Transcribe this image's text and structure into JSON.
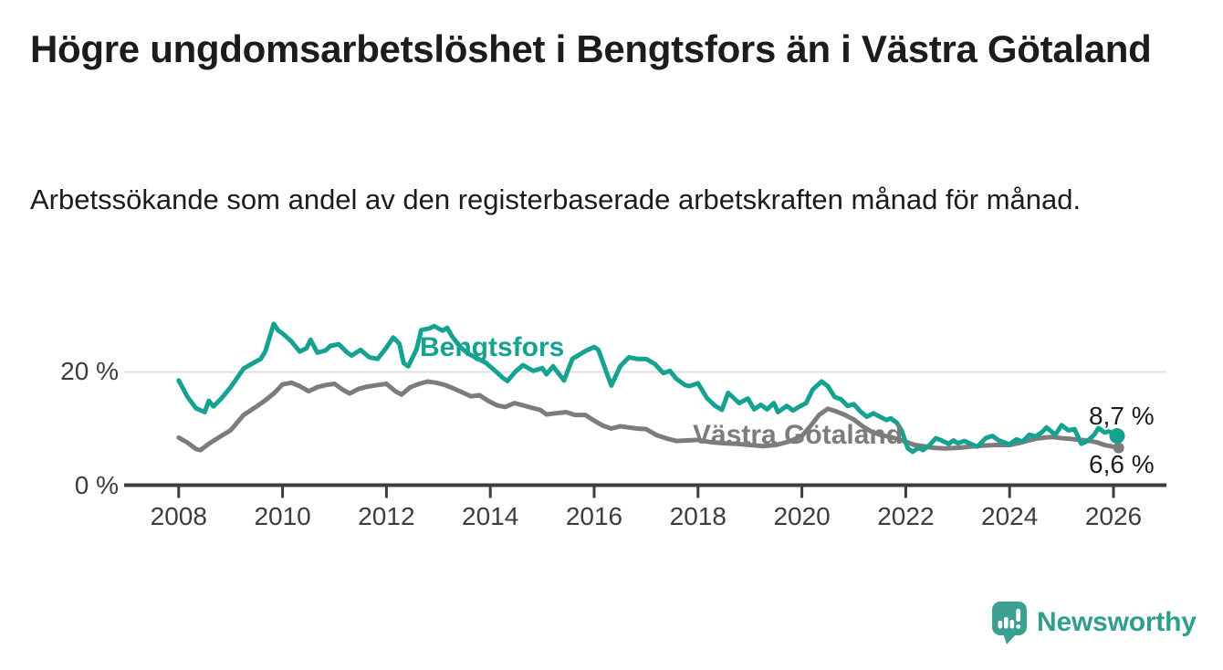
{
  "header": {
    "title": "Högre ungdomsarbetslöshet i Bengtsfors än i Västra Götaland",
    "subtitle": "Arbetssökande som andel av den registerbaserade arbetskraften månad för månad."
  },
  "footer": {
    "brand": {
      "name": "Newsworthy",
      "icon": "newsworthy-speech-bubble-bar-chart-icon",
      "icon_color": "#3ba092",
      "text_color": "#2f9e8f"
    }
  },
  "chart_data": {
    "type": "line",
    "title": "Högre ungdomsarbetslöshet i Bengtsfors än i Västra Götaland",
    "subtitle": "Arbetssökande som andel av den registerbaserade arbetskraften månad för månad.",
    "unit": "%",
    "legend_position": "inline-labels-on-lines",
    "grid": {
      "horizontal_gridlines_at": [
        20
      ],
      "gridline_color": "#e0e0e0"
    },
    "axis_color": "#3d3d3d",
    "x_axis": {
      "range": [
        2006.95,
        2027.05
      ],
      "ticks": [
        {
          "value": 2008,
          "label": "2008"
        },
        {
          "value": 2010,
          "label": "2010"
        },
        {
          "value": 2012,
          "label": "2012"
        },
        {
          "value": 2014,
          "label": "2014"
        },
        {
          "value": 2016,
          "label": "2016"
        },
        {
          "value": 2018,
          "label": "2018"
        },
        {
          "value": 2020,
          "label": "2020"
        },
        {
          "value": 2022,
          "label": "2022"
        },
        {
          "value": 2024,
          "label": "2024"
        },
        {
          "value": 2026,
          "label": "2026"
        }
      ]
    },
    "y_axis": {
      "range": [
        0,
        32
      ],
      "ticks": [
        {
          "value": 0,
          "label": "0 %"
        },
        {
          "value": 20,
          "label": "20 %"
        }
      ]
    },
    "series": [
      {
        "name": "Bengtsfors",
        "color": "#16a291",
        "end_label": "8,7 %",
        "end_value": 8.7,
        "end_dot_radius": 8.5,
        "points": [
          [
            2008.0,
            18.5
          ],
          [
            2008.17,
            15.6
          ],
          [
            2008.33,
            13.6
          ],
          [
            2008.5,
            12.9
          ],
          [
            2008.58,
            14.9
          ],
          [
            2008.67,
            13.9
          ],
          [
            2008.83,
            15.4
          ],
          [
            2009.0,
            17.3
          ],
          [
            2009.25,
            20.6
          ],
          [
            2009.42,
            21.5
          ],
          [
            2009.58,
            22.3
          ],
          [
            2009.67,
            23.7
          ],
          [
            2009.83,
            28.5
          ],
          [
            2009.92,
            27.3
          ],
          [
            2010.0,
            26.8
          ],
          [
            2010.17,
            25.4
          ],
          [
            2010.33,
            23.6
          ],
          [
            2010.46,
            24.2
          ],
          [
            2010.54,
            25.7
          ],
          [
            2010.67,
            23.4
          ],
          [
            2010.83,
            23.8
          ],
          [
            2010.92,
            24.6
          ],
          [
            2011.08,
            24.9
          ],
          [
            2011.25,
            23.4
          ],
          [
            2011.33,
            22.9
          ],
          [
            2011.5,
            23.9
          ],
          [
            2011.67,
            22.6
          ],
          [
            2011.83,
            22.3
          ],
          [
            2012.0,
            24.3
          ],
          [
            2012.13,
            26.1
          ],
          [
            2012.25,
            25.0
          ],
          [
            2012.33,
            21.6
          ],
          [
            2012.42,
            21.0
          ],
          [
            2012.58,
            24.0
          ],
          [
            2012.67,
            27.4
          ],
          [
            2012.83,
            27.7
          ],
          [
            2012.92,
            28.1
          ],
          [
            2013.08,
            27.3
          ],
          [
            2013.17,
            27.8
          ],
          [
            2013.25,
            26.5
          ],
          [
            2013.42,
            24.4
          ],
          [
            2013.58,
            23.2
          ],
          [
            2013.75,
            22.4
          ],
          [
            2013.92,
            21.6
          ],
          [
            2014.08,
            20.3
          ],
          [
            2014.25,
            18.9
          ],
          [
            2014.33,
            18.4
          ],
          [
            2014.5,
            20.2
          ],
          [
            2014.63,
            21.2
          ],
          [
            2014.83,
            20.2
          ],
          [
            2015.0,
            20.7
          ],
          [
            2015.08,
            19.6
          ],
          [
            2015.21,
            21.0
          ],
          [
            2015.42,
            18.5
          ],
          [
            2015.58,
            22.3
          ],
          [
            2015.83,
            23.7
          ],
          [
            2016.0,
            24.4
          ],
          [
            2016.08,
            23.9
          ],
          [
            2016.33,
            17.6
          ],
          [
            2016.5,
            21.0
          ],
          [
            2016.67,
            22.6
          ],
          [
            2016.83,
            22.3
          ],
          [
            2017.0,
            22.3
          ],
          [
            2017.17,
            21.4
          ],
          [
            2017.33,
            19.8
          ],
          [
            2017.46,
            20.2
          ],
          [
            2017.58,
            18.8
          ],
          [
            2017.75,
            17.7
          ],
          [
            2017.83,
            17.5
          ],
          [
            2018.0,
            18.0
          ],
          [
            2018.17,
            15.4
          ],
          [
            2018.33,
            14.0
          ],
          [
            2018.46,
            13.3
          ],
          [
            2018.58,
            16.3
          ],
          [
            2018.79,
            14.5
          ],
          [
            2018.96,
            15.3
          ],
          [
            2019.08,
            13.4
          ],
          [
            2019.21,
            14.2
          ],
          [
            2019.33,
            13.4
          ],
          [
            2019.46,
            14.5
          ],
          [
            2019.54,
            12.9
          ],
          [
            2019.71,
            14.0
          ],
          [
            2019.83,
            13.2
          ],
          [
            2019.92,
            13.7
          ],
          [
            2020.08,
            14.5
          ],
          [
            2020.21,
            16.9
          ],
          [
            2020.38,
            18.3
          ],
          [
            2020.5,
            17.5
          ],
          [
            2020.63,
            15.6
          ],
          [
            2020.75,
            15.2
          ],
          [
            2020.88,
            14.0
          ],
          [
            2021.0,
            14.3
          ],
          [
            2021.13,
            13.0
          ],
          [
            2021.25,
            12.1
          ],
          [
            2021.38,
            12.7
          ],
          [
            2021.5,
            12.1
          ],
          [
            2021.63,
            11.5
          ],
          [
            2021.71,
            11.8
          ],
          [
            2021.83,
            11.0
          ],
          [
            2021.92,
            9.7
          ],
          [
            2022.04,
            6.5
          ],
          [
            2022.13,
            5.9
          ],
          [
            2022.25,
            6.6
          ],
          [
            2022.33,
            6.2
          ],
          [
            2022.46,
            7.1
          ],
          [
            2022.58,
            8.3
          ],
          [
            2022.71,
            7.8
          ],
          [
            2022.83,
            7.3
          ],
          [
            2022.92,
            7.9
          ],
          [
            2023.0,
            7.4
          ],
          [
            2023.13,
            7.8
          ],
          [
            2023.25,
            7.3
          ],
          [
            2023.38,
            6.8
          ],
          [
            2023.54,
            8.3
          ],
          [
            2023.67,
            8.7
          ],
          [
            2023.79,
            7.9
          ],
          [
            2023.92,
            7.5
          ],
          [
            2024.0,
            7.2
          ],
          [
            2024.13,
            8.1
          ],
          [
            2024.25,
            7.7
          ],
          [
            2024.38,
            8.9
          ],
          [
            2024.5,
            8.6
          ],
          [
            2024.63,
            9.4
          ],
          [
            2024.71,
            10.2
          ],
          [
            2024.88,
            8.9
          ],
          [
            2025.0,
            10.6
          ],
          [
            2025.13,
            9.7
          ],
          [
            2025.25,
            9.9
          ],
          [
            2025.38,
            7.3
          ],
          [
            2025.5,
            7.8
          ],
          [
            2025.63,
            8.9
          ],
          [
            2025.71,
            10.1
          ],
          [
            2025.83,
            9.3
          ],
          [
            2025.92,
            9.5
          ],
          [
            2026.07,
            8.7
          ]
        ]
      },
      {
        "name": "Västra Götaland",
        "color": "#7c7c7c",
        "end_label": "6,6 %",
        "end_value": 6.6,
        "end_dot_radius": 6,
        "points": [
          [
            2008.0,
            8.4
          ],
          [
            2008.17,
            7.5
          ],
          [
            2008.33,
            6.4
          ],
          [
            2008.42,
            6.2
          ],
          [
            2008.58,
            7.3
          ],
          [
            2008.75,
            8.3
          ],
          [
            2009.0,
            9.7
          ],
          [
            2009.25,
            12.4
          ],
          [
            2009.5,
            13.9
          ],
          [
            2009.67,
            15.0
          ],
          [
            2009.83,
            16.2
          ],
          [
            2010.0,
            17.8
          ],
          [
            2010.17,
            18.1
          ],
          [
            2010.33,
            17.5
          ],
          [
            2010.5,
            16.6
          ],
          [
            2010.67,
            17.3
          ],
          [
            2010.83,
            17.7
          ],
          [
            2011.0,
            17.9
          ],
          [
            2011.17,
            16.8
          ],
          [
            2011.29,
            16.2
          ],
          [
            2011.46,
            17.0
          ],
          [
            2011.63,
            17.4
          ],
          [
            2011.83,
            17.7
          ],
          [
            2012.0,
            17.9
          ],
          [
            2012.17,
            16.6
          ],
          [
            2012.29,
            16.0
          ],
          [
            2012.46,
            17.3
          ],
          [
            2012.63,
            17.9
          ],
          [
            2012.79,
            18.3
          ],
          [
            2012.96,
            18.1
          ],
          [
            2013.13,
            17.7
          ],
          [
            2013.29,
            17.1
          ],
          [
            2013.46,
            16.4
          ],
          [
            2013.63,
            15.7
          ],
          [
            2013.79,
            15.9
          ],
          [
            2013.96,
            14.9
          ],
          [
            2014.13,
            14.1
          ],
          [
            2014.29,
            13.8
          ],
          [
            2014.46,
            14.5
          ],
          [
            2014.63,
            14.1
          ],
          [
            2014.79,
            13.7
          ],
          [
            2014.96,
            13.3
          ],
          [
            2015.08,
            12.5
          ],
          [
            2015.25,
            12.7
          ],
          [
            2015.46,
            12.9
          ],
          [
            2015.63,
            12.4
          ],
          [
            2015.83,
            12.4
          ],
          [
            2016.0,
            11.4
          ],
          [
            2016.17,
            10.5
          ],
          [
            2016.33,
            10.0
          ],
          [
            2016.5,
            10.4
          ],
          [
            2016.67,
            10.2
          ],
          [
            2016.83,
            10.0
          ],
          [
            2017.0,
            9.9
          ],
          [
            2017.21,
            8.8
          ],
          [
            2017.42,
            8.2
          ],
          [
            2017.58,
            7.8
          ],
          [
            2017.79,
            7.9
          ],
          [
            2018.0,
            8.0
          ],
          [
            2018.25,
            7.6
          ],
          [
            2018.5,
            7.4
          ],
          [
            2018.75,
            7.3
          ],
          [
            2019.0,
            7.1
          ],
          [
            2019.25,
            6.9
          ],
          [
            2019.5,
            7.1
          ],
          [
            2019.75,
            7.7
          ],
          [
            2020.0,
            8.7
          ],
          [
            2020.17,
            10.5
          ],
          [
            2020.33,
            12.4
          ],
          [
            2020.5,
            13.5
          ],
          [
            2020.67,
            13.0
          ],
          [
            2020.83,
            12.4
          ],
          [
            2021.0,
            11.6
          ],
          [
            2021.17,
            10.4
          ],
          [
            2021.33,
            9.5
          ],
          [
            2021.5,
            8.9
          ],
          [
            2021.75,
            8.4
          ],
          [
            2021.96,
            7.8
          ],
          [
            2022.17,
            7.1
          ],
          [
            2022.33,
            6.9
          ],
          [
            2022.54,
            6.6
          ],
          [
            2022.75,
            6.5
          ],
          [
            2023.0,
            6.6
          ],
          [
            2023.25,
            6.8
          ],
          [
            2023.5,
            7.0
          ],
          [
            2023.75,
            7.1
          ],
          [
            2024.0,
            7.1
          ],
          [
            2024.17,
            7.4
          ],
          [
            2024.33,
            7.8
          ],
          [
            2024.5,
            8.2
          ],
          [
            2024.67,
            8.4
          ],
          [
            2024.83,
            8.5
          ],
          [
            2025.0,
            8.3
          ],
          [
            2025.17,
            8.2
          ],
          [
            2025.33,
            8.0
          ],
          [
            2025.5,
            7.9
          ],
          [
            2025.67,
            7.6
          ],
          [
            2025.83,
            7.1
          ],
          [
            2026.1,
            6.6
          ]
        ]
      }
    ]
  }
}
